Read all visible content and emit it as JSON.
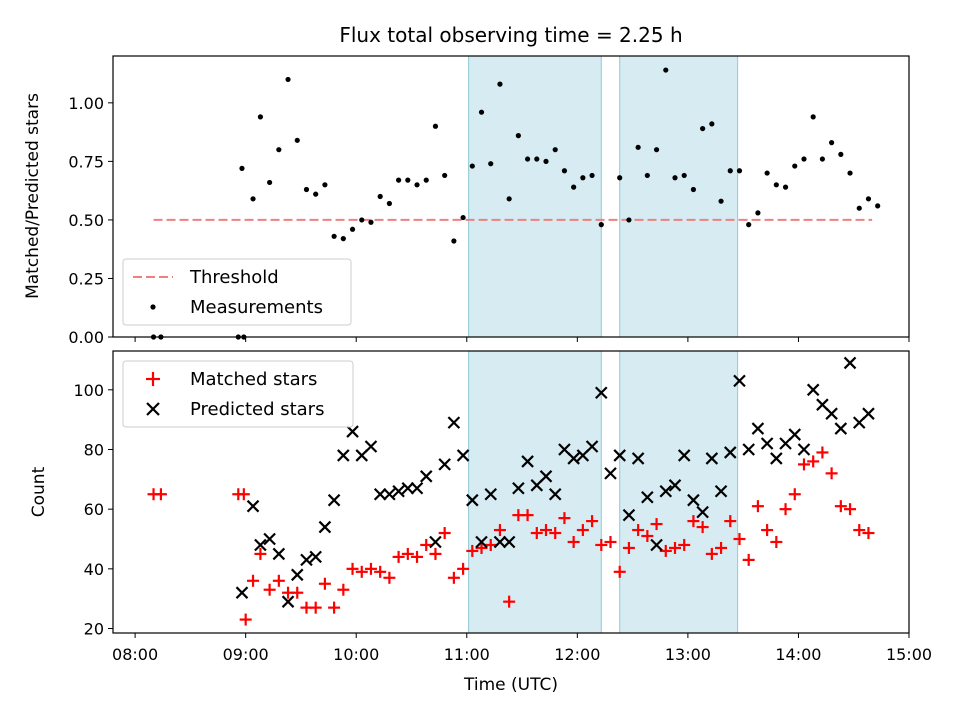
{
  "chart_data": [
    {
      "type": "scatter",
      "title": "Flux total observing time = 2.25 h",
      "xlabel": "",
      "ylabel": "Matched/Predicted stars",
      "ylim": [
        0,
        1.2
      ],
      "yticks": [
        "0.00",
        "0.25",
        "0.50",
        "0.75",
        "1.00"
      ],
      "xlim": [
        "07:48",
        "15:00"
      ],
      "legend": {
        "placement": "bottom-left",
        "entries": [
          {
            "label": "Threshold",
            "style": "dashed-line"
          },
          {
            "label": "Measurements",
            "style": "dot"
          }
        ]
      },
      "threshold": {
        "value": 0.5,
        "x_start": "08:10",
        "x_end": "14:40",
        "color": "#f08080"
      },
      "shaded_spans": [
        {
          "start": "11:01",
          "end": "12:13"
        },
        {
          "start": "12:23",
          "end": "13:27"
        }
      ],
      "series": [
        {
          "name": "Measurements",
          "color": "#000000",
          "points": [
            {
              "x": "08:10",
              "y": 0.0
            },
            {
              "x": "08:14",
              "y": 0.0
            },
            {
              "x": "08:56",
              "y": 0.0
            },
            {
              "x": "08:59",
              "y": 0.0
            },
            {
              "x": "08:58",
              "y": 0.72
            },
            {
              "x": "09:04",
              "y": 0.59
            },
            {
              "x": "09:08",
              "y": 0.94
            },
            {
              "x": "09:13",
              "y": 0.66
            },
            {
              "x": "09:18",
              "y": 0.8
            },
            {
              "x": "09:23",
              "y": 1.1
            },
            {
              "x": "09:28",
              "y": 0.84
            },
            {
              "x": "09:33",
              "y": 0.63
            },
            {
              "x": "09:38",
              "y": 0.61
            },
            {
              "x": "09:43",
              "y": 0.65
            },
            {
              "x": "09:48",
              "y": 0.43
            },
            {
              "x": "09:53",
              "y": 0.42
            },
            {
              "x": "09:58",
              "y": 0.46
            },
            {
              "x": "10:03",
              "y": 0.5
            },
            {
              "x": "10:08",
              "y": 0.49
            },
            {
              "x": "10:13",
              "y": 0.6
            },
            {
              "x": "10:18",
              "y": 0.57
            },
            {
              "x": "10:23",
              "y": 0.67
            },
            {
              "x": "10:28",
              "y": 0.67
            },
            {
              "x": "10:33",
              "y": 0.65
            },
            {
              "x": "10:38",
              "y": 0.67
            },
            {
              "x": "10:43",
              "y": 0.9
            },
            {
              "x": "10:48",
              "y": 0.69
            },
            {
              "x": "10:53",
              "y": 0.41
            },
            {
              "x": "10:58",
              "y": 0.51
            },
            {
              "x": "11:03",
              "y": 0.73
            },
            {
              "x": "11:08",
              "y": 0.96
            },
            {
              "x": "11:13",
              "y": 0.74
            },
            {
              "x": "11:18",
              "y": 1.08
            },
            {
              "x": "11:23",
              "y": 0.59
            },
            {
              "x": "11:28",
              "y": 0.86
            },
            {
              "x": "11:33",
              "y": 0.76
            },
            {
              "x": "11:38",
              "y": 0.76
            },
            {
              "x": "11:43",
              "y": 0.75
            },
            {
              "x": "11:48",
              "y": 0.8
            },
            {
              "x": "11:53",
              "y": 0.71
            },
            {
              "x": "11:58",
              "y": 0.64
            },
            {
              "x": "12:03",
              "y": 0.68
            },
            {
              "x": "12:08",
              "y": 0.69
            },
            {
              "x": "12:13",
              "y": 0.48
            },
            {
              "x": "12:23",
              "y": 0.68
            },
            {
              "x": "12:28",
              "y": 0.5
            },
            {
              "x": "12:33",
              "y": 0.81
            },
            {
              "x": "12:38",
              "y": 0.69
            },
            {
              "x": "12:43",
              "y": 0.8
            },
            {
              "x": "12:48",
              "y": 1.14
            },
            {
              "x": "12:53",
              "y": 0.68
            },
            {
              "x": "12:58",
              "y": 0.69
            },
            {
              "x": "13:03",
              "y": 0.63
            },
            {
              "x": "13:08",
              "y": 0.89
            },
            {
              "x": "13:13",
              "y": 0.91
            },
            {
              "x": "13:18",
              "y": 0.58
            },
            {
              "x": "13:23",
              "y": 0.71
            },
            {
              "x": "13:28",
              "y": 0.71
            },
            {
              "x": "13:33",
              "y": 0.48
            },
            {
              "x": "13:38",
              "y": 0.53
            },
            {
              "x": "13:43",
              "y": 0.7
            },
            {
              "x": "13:48",
              "y": 0.65
            },
            {
              "x": "13:53",
              "y": 0.64
            },
            {
              "x": "13:58",
              "y": 0.73
            },
            {
              "x": "14:03",
              "y": 0.76
            },
            {
              "x": "14:08",
              "y": 0.94
            },
            {
              "x": "14:13",
              "y": 0.76
            },
            {
              "x": "14:18",
              "y": 0.83
            },
            {
              "x": "14:23",
              "y": 0.78
            },
            {
              "x": "14:28",
              "y": 0.7
            },
            {
              "x": "14:33",
              "y": 0.55
            },
            {
              "x": "14:38",
              "y": 0.59
            },
            {
              "x": "14:43",
              "y": 0.56
            }
          ]
        }
      ]
    },
    {
      "type": "scatter",
      "title": "",
      "xlabel": "Time (UTC)",
      "ylabel": "Count",
      "ylim": [
        18.5,
        113
      ],
      "yticks": [
        "20",
        "40",
        "60",
        "80",
        "100"
      ],
      "xlim": [
        "07:48",
        "15:00"
      ],
      "xticks": [
        "08:00",
        "09:00",
        "10:00",
        "11:00",
        "12:00",
        "13:00",
        "14:00",
        "15:00"
      ],
      "legend": {
        "placement": "top-left",
        "entries": [
          {
            "label": "Matched stars",
            "style": "plus",
            "color": "#ff0000"
          },
          {
            "label": "Predicted stars",
            "style": "cross",
            "color": "#000000"
          }
        ]
      },
      "shaded_spans": [
        {
          "start": "11:01",
          "end": "12:13"
        },
        {
          "start": "12:23",
          "end": "13:27"
        }
      ],
      "series": [
        {
          "name": "Matched stars",
          "marker": "plus",
          "color": "#ff0000",
          "points": [
            {
              "x": "08:10",
              "y": 65
            },
            {
              "x": "08:14",
              "y": 65
            },
            {
              "x": "08:56",
              "y": 65
            },
            {
              "x": "08:59",
              "y": 65
            },
            {
              "x": "09:00",
              "y": 23
            },
            {
              "x": "09:04",
              "y": 36
            },
            {
              "x": "09:08",
              "y": 45
            },
            {
              "x": "09:13",
              "y": 33
            },
            {
              "x": "09:18",
              "y": 36
            },
            {
              "x": "09:23",
              "y": 32
            },
            {
              "x": "09:28",
              "y": 32
            },
            {
              "x": "09:33",
              "y": 27
            },
            {
              "x": "09:38",
              "y": 27
            },
            {
              "x": "09:43",
              "y": 35
            },
            {
              "x": "09:48",
              "y": 27
            },
            {
              "x": "09:53",
              "y": 33
            },
            {
              "x": "09:58",
              "y": 40
            },
            {
              "x": "10:03",
              "y": 39
            },
            {
              "x": "10:08",
              "y": 40
            },
            {
              "x": "10:13",
              "y": 39
            },
            {
              "x": "10:18",
              "y": 37
            },
            {
              "x": "10:23",
              "y": 44
            },
            {
              "x": "10:28",
              "y": 45
            },
            {
              "x": "10:33",
              "y": 44
            },
            {
              "x": "10:38",
              "y": 48
            },
            {
              "x": "10:43",
              "y": 45
            },
            {
              "x": "10:48",
              "y": 52
            },
            {
              "x": "10:53",
              "y": 37
            },
            {
              "x": "10:58",
              "y": 40
            },
            {
              "x": "11:03",
              "y": 46
            },
            {
              "x": "11:08",
              "y": 47
            },
            {
              "x": "11:13",
              "y": 48
            },
            {
              "x": "11:18",
              "y": 53
            },
            {
              "x": "11:23",
              "y": 29
            },
            {
              "x": "11:28",
              "y": 58
            },
            {
              "x": "11:33",
              "y": 58
            },
            {
              "x": "11:38",
              "y": 52
            },
            {
              "x": "11:43",
              "y": 53
            },
            {
              "x": "11:48",
              "y": 52
            },
            {
              "x": "11:53",
              "y": 57
            },
            {
              "x": "11:58",
              "y": 49
            },
            {
              "x": "12:03",
              "y": 53
            },
            {
              "x": "12:08",
              "y": 56
            },
            {
              "x": "12:13",
              "y": 48
            },
            {
              "x": "12:18",
              "y": 49
            },
            {
              "x": "12:23",
              "y": 39
            },
            {
              "x": "12:28",
              "y": 47
            },
            {
              "x": "12:33",
              "y": 53
            },
            {
              "x": "12:38",
              "y": 51
            },
            {
              "x": "12:43",
              "y": 55
            },
            {
              "x": "12:48",
              "y": 46
            },
            {
              "x": "12:53",
              "y": 47
            },
            {
              "x": "12:58",
              "y": 48
            },
            {
              "x": "13:03",
              "y": 56
            },
            {
              "x": "13:08",
              "y": 54
            },
            {
              "x": "13:13",
              "y": 45
            },
            {
              "x": "13:18",
              "y": 47
            },
            {
              "x": "13:23",
              "y": 56
            },
            {
              "x": "13:28",
              "y": 50
            },
            {
              "x": "13:33",
              "y": 43
            },
            {
              "x": "13:38",
              "y": 61
            },
            {
              "x": "13:43",
              "y": 53
            },
            {
              "x": "13:48",
              "y": 49
            },
            {
              "x": "13:53",
              "y": 60
            },
            {
              "x": "13:58",
              "y": 65
            },
            {
              "x": "14:03",
              "y": 75
            },
            {
              "x": "14:08",
              "y": 76
            },
            {
              "x": "14:13",
              "y": 79
            },
            {
              "x": "14:18",
              "y": 72
            },
            {
              "x": "14:23",
              "y": 61
            },
            {
              "x": "14:28",
              "y": 60
            },
            {
              "x": "14:33",
              "y": 53
            },
            {
              "x": "14:38",
              "y": 52
            }
          ]
        },
        {
          "name": "Predicted stars",
          "marker": "cross",
          "color": "#000000",
          "points": [
            {
              "x": "08:58",
              "y": 32
            },
            {
              "x": "09:04",
              "y": 61
            },
            {
              "x": "09:08",
              "y": 48
            },
            {
              "x": "09:13",
              "y": 50
            },
            {
              "x": "09:18",
              "y": 45
            },
            {
              "x": "09:23",
              "y": 29
            },
            {
              "x": "09:28",
              "y": 38
            },
            {
              "x": "09:33",
              "y": 43
            },
            {
              "x": "09:38",
              "y": 44
            },
            {
              "x": "09:43",
              "y": 54
            },
            {
              "x": "09:48",
              "y": 63
            },
            {
              "x": "09:53",
              "y": 78
            },
            {
              "x": "09:58",
              "y": 86
            },
            {
              "x": "10:03",
              "y": 78
            },
            {
              "x": "10:08",
              "y": 81
            },
            {
              "x": "10:13",
              "y": 65
            },
            {
              "x": "10:18",
              "y": 65
            },
            {
              "x": "10:23",
              "y": 66
            },
            {
              "x": "10:28",
              "y": 67
            },
            {
              "x": "10:33",
              "y": 67
            },
            {
              "x": "10:38",
              "y": 71
            },
            {
              "x": "10:43",
              "y": 49
            },
            {
              "x": "10:48",
              "y": 75
            },
            {
              "x": "10:53",
              "y": 89
            },
            {
              "x": "10:58",
              "y": 78
            },
            {
              "x": "11:03",
              "y": 63
            },
            {
              "x": "11:08",
              "y": 49
            },
            {
              "x": "11:13",
              "y": 65
            },
            {
              "x": "11:18",
              "y": 49
            },
            {
              "x": "11:23",
              "y": 49
            },
            {
              "x": "11:28",
              "y": 67
            },
            {
              "x": "11:33",
              "y": 76
            },
            {
              "x": "11:38",
              "y": 68
            },
            {
              "x": "11:43",
              "y": 71
            },
            {
              "x": "11:48",
              "y": 65
            },
            {
              "x": "11:53",
              "y": 80
            },
            {
              "x": "11:58",
              "y": 77
            },
            {
              "x": "12:03",
              "y": 78
            },
            {
              "x": "12:08",
              "y": 81
            },
            {
              "x": "12:13",
              "y": 99
            },
            {
              "x": "12:18",
              "y": 72
            },
            {
              "x": "12:23",
              "y": 78
            },
            {
              "x": "12:28",
              "y": 58
            },
            {
              "x": "12:33",
              "y": 77
            },
            {
              "x": "12:38",
              "y": 64
            },
            {
              "x": "12:43",
              "y": 48
            },
            {
              "x": "12:48",
              "y": 66
            },
            {
              "x": "12:53",
              "y": 68
            },
            {
              "x": "12:58",
              "y": 78
            },
            {
              "x": "13:03",
              "y": 63
            },
            {
              "x": "13:08",
              "y": 59
            },
            {
              "x": "13:13",
              "y": 77
            },
            {
              "x": "13:18",
              "y": 66
            },
            {
              "x": "13:23",
              "y": 79
            },
            {
              "x": "13:28",
              "y": 103
            },
            {
              "x": "13:33",
              "y": 80
            },
            {
              "x": "13:38",
              "y": 87
            },
            {
              "x": "13:43",
              "y": 82
            },
            {
              "x": "13:48",
              "y": 77
            },
            {
              "x": "13:53",
              "y": 82
            },
            {
              "x": "13:58",
              "y": 85
            },
            {
              "x": "14:03",
              "y": 80
            },
            {
              "x": "14:08",
              "y": 100
            },
            {
              "x": "14:13",
              "y": 95
            },
            {
              "x": "14:18",
              "y": 92
            },
            {
              "x": "14:23",
              "y": 87
            },
            {
              "x": "14:28",
              "y": 109
            },
            {
              "x": "14:33",
              "y": 89
            },
            {
              "x": "14:38",
              "y": 92
            }
          ]
        }
      ]
    }
  ]
}
